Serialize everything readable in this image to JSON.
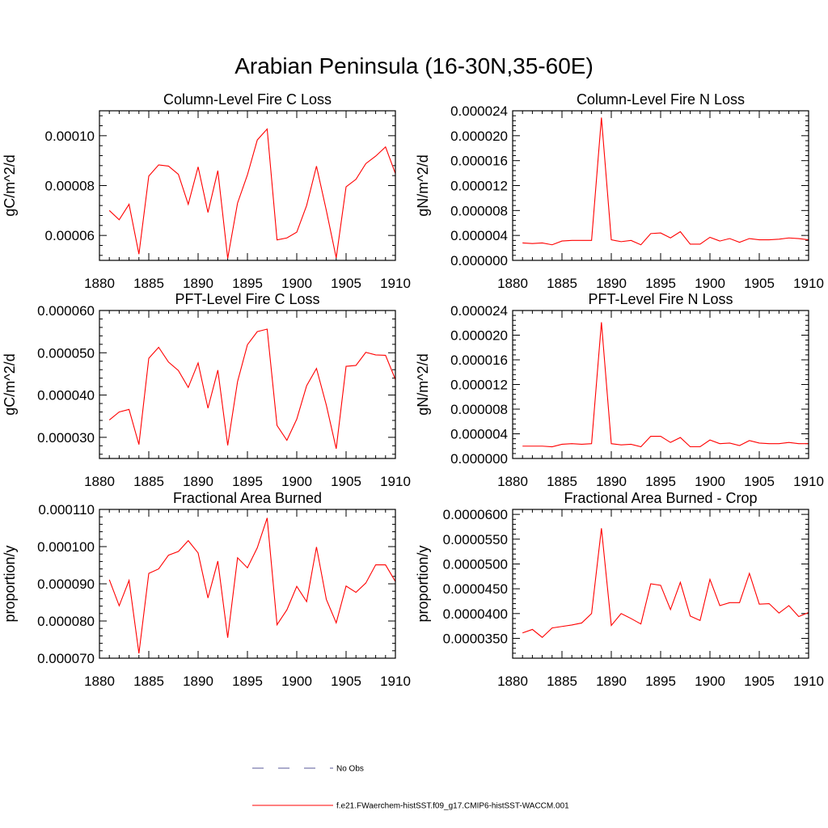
{
  "figure": {
    "title": "Arabian Peninsula (16-30N,35-60E)"
  },
  "colors": {
    "model": "#ff0000",
    "obs": "#5a5a9a"
  },
  "legend": [
    {
      "label": "No Obs",
      "style": "dashed",
      "color": "#5a5a9a"
    },
    {
      "label": "f.e21.FWaerchem-histSST.f09_g17.CMIP6-histSST-WACCM.001",
      "style": "solid",
      "color": "#ff0000"
    }
  ],
  "chart_data": [
    {
      "type": "line",
      "title": "Column-Level Fire C Loss",
      "ylabel": "gC/m^2/d",
      "xlim": [
        1880,
        1910
      ],
      "ylim": [
        5e-05,
        0.00011
      ],
      "xticks": [
        "1880",
        "1885",
        "1890",
        "1895",
        "1900",
        "1905",
        "1910"
      ],
      "yticks": [
        {
          "v": 6e-05,
          "label": "0.00006"
        },
        {
          "v": 8e-05,
          "label": "0.00008"
        },
        {
          "v": 0.0001,
          "label": "0.00010"
        }
      ],
      "x": [
        1881,
        1882,
        1883,
        1884,
        1885,
        1886,
        1887,
        1888,
        1889,
        1890,
        1891,
        1892,
        1893,
        1894,
        1895,
        1896,
        1897,
        1898,
        1899,
        1900,
        1901,
        1902,
        1903,
        1904,
        1905,
        1906,
        1907,
        1908,
        1909,
        1910
      ],
      "series": [
        {
          "values": [
            7e-05,
            6.63e-05,
            7.25e-05,
            5.25e-05,
            8.38e-05,
            8.83e-05,
            8.78e-05,
            8.45e-05,
            7.25e-05,
            8.75e-05,
            6.92e-05,
            8.6e-05,
            5.08e-05,
            7.3e-05,
            8.43e-05,
            9.83e-05,
            0.0001027,
            5.82e-05,
            5.9e-05,
            6.13e-05,
            7.2e-05,
            8.78e-05,
            7e-05,
            5.1e-05,
            7.95e-05,
            8.25e-05,
            8.88e-05,
            9.18e-05,
            9.55e-05,
            8.48e-05
          ]
        }
      ]
    },
    {
      "type": "line",
      "title": "Column-Level Fire N Loss",
      "ylabel": "gN/m^2/d",
      "xlim": [
        1880,
        1910
      ],
      "ylim": [
        0,
        2.4e-05
      ],
      "xticks": [
        "1880",
        "1885",
        "1890",
        "1895",
        "1900",
        "1905",
        "1910"
      ],
      "yticks": [
        {
          "v": 0,
          "label": "0.000000"
        },
        {
          "v": 4e-06,
          "label": "0.000004"
        },
        {
          "v": 8e-06,
          "label": "0.000008"
        },
        {
          "v": 1.2e-05,
          "label": "0.000012"
        },
        {
          "v": 1.6e-05,
          "label": "0.000016"
        },
        {
          "v": 2e-05,
          "label": "0.000020"
        },
        {
          "v": 2.4e-05,
          "label": "0.000024"
        }
      ],
      "x": [
        1881,
        1882,
        1883,
        1884,
        1885,
        1886,
        1887,
        1888,
        1889,
        1890,
        1891,
        1892,
        1893,
        1894,
        1895,
        1896,
        1897,
        1898,
        1899,
        1900,
        1901,
        1902,
        1903,
        1904,
        1905,
        1906,
        1907,
        1908,
        1909,
        1910
      ],
      "series": [
        {
          "values": [
            2.8e-06,
            2.7e-06,
            2.8e-06,
            2.5e-06,
            3.1e-06,
            3.2e-06,
            3.2e-06,
            3.2e-06,
            2.29e-05,
            3.3e-06,
            3e-06,
            3.2e-06,
            2.5e-06,
            4.3e-06,
            4.4e-06,
            3.6e-06,
            4.6e-06,
            2.6e-06,
            2.6e-06,
            3.7e-06,
            3.1e-06,
            3.5e-06,
            2.9e-06,
            3.5e-06,
            3.3e-06,
            3.3e-06,
            3.4e-06,
            3.6e-06,
            3.5e-06,
            3.3e-06
          ]
        }
      ]
    },
    {
      "type": "line",
      "title": "PFT-Level Fire C Loss",
      "ylabel": "gC/m^2/d",
      "xlim": [
        1880,
        1910
      ],
      "ylim": [
        2.5e-05,
        6e-05
      ],
      "xticks": [
        "1880",
        "1885",
        "1890",
        "1895",
        "1900",
        "1905",
        "1910"
      ],
      "yticks": [
        {
          "v": 3e-05,
          "label": "0.000030"
        },
        {
          "v": 4e-05,
          "label": "0.000040"
        },
        {
          "v": 5e-05,
          "label": "0.000050"
        },
        {
          "v": 6e-05,
          "label": "0.000060"
        }
      ],
      "x": [
        1881,
        1882,
        1883,
        1884,
        1885,
        1886,
        1887,
        1888,
        1889,
        1890,
        1891,
        1892,
        1893,
        1894,
        1895,
        1896,
        1897,
        1898,
        1899,
        1900,
        1901,
        1902,
        1903,
        1904,
        1905,
        1906,
        1907,
        1908,
        1909,
        1910
      ],
      "series": [
        {
          "values": [
            3.41e-05,
            3.6e-05,
            3.66e-05,
            2.83e-05,
            4.87e-05,
            5.13e-05,
            4.78e-05,
            4.58e-05,
            4.18e-05,
            4.76e-05,
            3.69e-05,
            4.59e-05,
            2.81e-05,
            4.32e-05,
            5.19e-05,
            5.5e-05,
            5.56e-05,
            3.28e-05,
            2.93e-05,
            3.43e-05,
            4.22e-05,
            4.63e-05,
            3.76e-05,
            2.73e-05,
            4.68e-05,
            4.7e-05,
            5.01e-05,
            4.95e-05,
            4.94e-05,
            4.37e-05
          ]
        }
      ]
    },
    {
      "type": "line",
      "title": "PFT-Level Fire N Loss",
      "ylabel": "gN/m^2/d",
      "xlim": [
        1880,
        1910
      ],
      "ylim": [
        0,
        2.4e-05
      ],
      "xticks": [
        "1880",
        "1885",
        "1890",
        "1895",
        "1900",
        "1905",
        "1910"
      ],
      "yticks": [
        {
          "v": 0,
          "label": "0.000000"
        },
        {
          "v": 4e-06,
          "label": "0.000004"
        },
        {
          "v": 8e-06,
          "label": "0.000008"
        },
        {
          "v": 1.2e-05,
          "label": "0.000012"
        },
        {
          "v": 1.6e-05,
          "label": "0.000016"
        },
        {
          "v": 2e-05,
          "label": "0.000020"
        },
        {
          "v": 2.4e-05,
          "label": "0.000024"
        }
      ],
      "x": [
        1881,
        1882,
        1883,
        1884,
        1885,
        1886,
        1887,
        1888,
        1889,
        1890,
        1891,
        1892,
        1893,
        1894,
        1895,
        1896,
        1897,
        1898,
        1899,
        1900,
        1901,
        1902,
        1903,
        1904,
        1905,
        1906,
        1907,
        1908,
        1909,
        1910
      ],
      "series": [
        {
          "values": [
            2e-06,
            2e-06,
            2e-06,
            1.9e-06,
            2.3e-06,
            2.4e-06,
            2.3e-06,
            2.4e-06,
            2.21e-05,
            2.4e-06,
            2.2e-06,
            2.3e-06,
            1.9e-06,
            3.6e-06,
            3.6e-06,
            2.6e-06,
            3.4e-06,
            1.9e-06,
            1.9e-06,
            3e-06,
            2.4e-06,
            2.5e-06,
            2.1e-06,
            2.9e-06,
            2.5e-06,
            2.4e-06,
            2.4e-06,
            2.6e-06,
            2.4e-06,
            2.4e-06
          ]
        }
      ]
    },
    {
      "type": "line",
      "title": "Fractional Area Burned",
      "ylabel": "proportion/y",
      "xlim": [
        1880,
        1910
      ],
      "ylim": [
        7e-05,
        0.00011
      ],
      "xticks": [
        "1880",
        "1885",
        "1890",
        "1895",
        "1900",
        "1905",
        "1910"
      ],
      "yticks": [
        {
          "v": 7e-05,
          "label": "0.000070"
        },
        {
          "v": 8e-05,
          "label": "0.000080"
        },
        {
          "v": 9e-05,
          "label": "0.000090"
        },
        {
          "v": 0.0001,
          "label": "0.000100"
        },
        {
          "v": 0.00011,
          "label": "0.000110"
        }
      ],
      "x": [
        1881,
        1882,
        1883,
        1884,
        1885,
        1886,
        1887,
        1888,
        1889,
        1890,
        1891,
        1892,
        1893,
        1894,
        1895,
        1896,
        1897,
        1898,
        1899,
        1900,
        1901,
        1902,
        1903,
        1904,
        1905,
        1906,
        1907,
        1908,
        1909,
        1910
      ],
      "series": [
        {
          "values": [
            9.11e-05,
            8.41e-05,
            9.09e-05,
            7.13e-05,
            9.28e-05,
            9.4e-05,
            9.77e-05,
            9.87e-05,
            0.0001016,
            9.83e-05,
            8.62e-05,
            9.61e-05,
            7.55e-05,
            9.7e-05,
            9.43e-05,
            9.97e-05,
            0.0001077,
            7.9e-05,
            8.3e-05,
            8.93e-05,
            8.52e-05,
            9.99e-05,
            8.58e-05,
            7.95e-05,
            8.94e-05,
            8.77e-05,
            9.02e-05,
            9.51e-05,
            9.51e-05,
            9.06e-05
          ]
        }
      ]
    },
    {
      "type": "line",
      "title": "Fractional Area Burned - Crop",
      "ylabel": "proportion/y",
      "xlim": [
        1880,
        1910
      ],
      "ylim": [
        3.1e-05,
        6.1e-05
      ],
      "xticks": [
        "1880",
        "1885",
        "1890",
        "1895",
        "1900",
        "1905",
        "1910"
      ],
      "yticks": [
        {
          "v": 3.5e-05,
          "label": "0.0000350"
        },
        {
          "v": 4e-05,
          "label": "0.0000400"
        },
        {
          "v": 4.5e-05,
          "label": "0.0000450"
        },
        {
          "v": 5e-05,
          "label": "0.0000500"
        },
        {
          "v": 5.5e-05,
          "label": "0.0000550"
        },
        {
          "v": 6e-05,
          "label": "0.0000600"
        }
      ],
      "x": [
        1881,
        1882,
        1883,
        1884,
        1885,
        1886,
        1887,
        1888,
        1889,
        1890,
        1891,
        1892,
        1893,
        1894,
        1895,
        1896,
        1897,
        1898,
        1899,
        1900,
        1901,
        1902,
        1903,
        1904,
        1905,
        1906,
        1907,
        1908,
        1909,
        1910
      ],
      "series": [
        {
          "values": [
            3.61e-05,
            3.68e-05,
            3.52e-05,
            3.71e-05,
            3.74e-05,
            3.77e-05,
            3.81e-05,
            4e-05,
            5.72e-05,
            3.76e-05,
            4e-05,
            3.9e-05,
            3.79e-05,
            4.6e-05,
            4.57e-05,
            4.08e-05,
            4.63e-05,
            3.95e-05,
            3.86e-05,
            4.69e-05,
            4.16e-05,
            4.22e-05,
            4.22e-05,
            4.81e-05,
            4.19e-05,
            4.2e-05,
            4.01e-05,
            4.16e-05,
            3.94e-05,
            4.02e-05
          ]
        }
      ]
    }
  ]
}
